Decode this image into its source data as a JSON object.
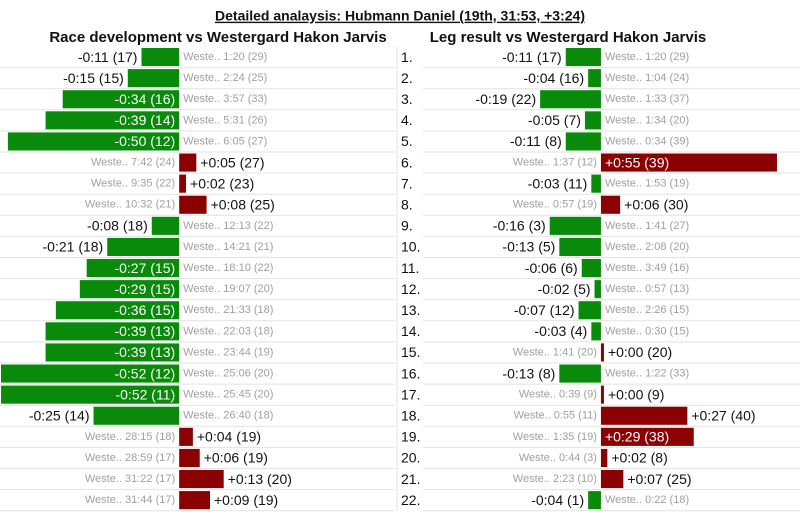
{
  "title": "Detailed analaysis: Hubmann Daniel (19th, 31:53, +3:24)",
  "chart_data": [
    {
      "type": "bar",
      "orientation": "horizontal",
      "title": "Race development vs Westergard Hakon Jarvis",
      "colors": {
        "negative": "#0a8a0a",
        "positive": "#8b0000"
      },
      "xlim": [
        -52.3,
        63
      ],
      "values": [
        -11,
        -15,
        -34,
        -39,
        -50,
        5,
        2,
        8,
        -8,
        -21,
        -27,
        -29,
        -36,
        -39,
        -39,
        -52,
        -52,
        -25,
        4,
        6,
        13,
        9
      ],
      "value_labels": [
        "-0:11 (17)",
        "-0:15 (15)",
        "-0:34 (16)",
        "-0:39 (14)",
        "-0:50 (12)",
        "+0:05 (27)",
        "+0:02 (23)",
        "+0:08 (25)",
        "-0:08 (18)",
        "-0:21 (18)",
        "-0:27 (15)",
        "-0:29 (15)",
        "-0:36 (15)",
        "-0:39 (13)",
        "-0:39 (13)",
        "-0:52 (12)",
        "-0:52 (11)",
        "-0:25 (14)",
        "+0:04 (19)",
        "+0:06 (19)",
        "+0:13 (20)",
        "+0:09 (19)"
      ],
      "reference_labels": [
        "Weste.. 1:20 (29)",
        "Weste.. 2:24 (25)",
        "Weste.. 3:57 (33)",
        "Weste.. 5:31 (26)",
        "Weste.. 6:05 (27)",
        "Weste.. 7:42 (24)",
        "Weste.. 9:35 (22)",
        "Weste.. 10:32 (21)",
        "Weste.. 12:13 (22)",
        "Weste.. 14:21 (21)",
        "Weste.. 18:10 (22)",
        "Weste.. 19:07 (20)",
        "Weste.. 21:33 (18)",
        "Weste.. 22:03 (18)",
        "Weste.. 23:44 (19)",
        "Weste.. 25:06 (20)",
        "Weste.. 25:45 (20)",
        "Weste.. 26:40 (18)",
        "Weste.. 28:15 (18)",
        "Weste.. 28:59 (17)",
        "Weste.. 31:22 (17)",
        "Weste.. 31:44 (17)"
      ]
    },
    {
      "type": "bar",
      "orientation": "horizontal",
      "title": "Leg result vs Westergard Hakon Jarvis",
      "colors": {
        "negative": "#0a8a0a",
        "positive": "#8b0000"
      },
      "xlim": [
        -55.6,
        62.2
      ],
      "categories": [
        "1.",
        "2.",
        "3.",
        "4.",
        "5.",
        "6.",
        "7.",
        "8.",
        "9.",
        "10.",
        "11.",
        "12.",
        "13.",
        "14.",
        "15.",
        "16.",
        "17.",
        "18.",
        "19.",
        "20.",
        "21.",
        "22."
      ],
      "values": [
        -11,
        -4,
        -19,
        -5,
        -11,
        55,
        -3,
        6,
        -16,
        -13,
        -6,
        -2,
        -7,
        -3,
        0,
        -13,
        0,
        27,
        29,
        2,
        7,
        -4
      ],
      "value_labels": [
        "-0:11 (17)",
        "-0:04 (16)",
        "-0:19 (22)",
        "-0:05 (7)",
        "-0:11 (8)",
        "+0:55 (39)",
        "-0:03 (11)",
        "+0:06 (30)",
        "-0:16 (3)",
        "-0:13 (5)",
        "-0:06 (6)",
        "-0:02 (5)",
        "-0:07 (12)",
        "-0:03 (4)",
        "+0:00 (20)",
        "-0:13 (8)",
        "+0:00 (9)",
        "+0:27 (40)",
        "+0:29 (38)",
        "+0:02 (8)",
        "+0:07 (25)",
        "-0:04 (1)"
      ],
      "reference_labels": [
        "Weste.. 1:20 (29)",
        "Weste.. 1:04 (24)",
        "Weste.. 1:33 (37)",
        "Weste.. 1:34 (20)",
        "Weste.. 0:34 (39)",
        "Weste.. 1:37 (12)",
        "Weste.. 1:53 (19)",
        "Weste.. 0:57 (19)",
        "Weste.. 1:41 (27)",
        "Weste.. 2:08 (20)",
        "Weste.. 3:49 (16)",
        "Weste.. 0:57 (13)",
        "Weste.. 2:26 (15)",
        "Weste.. 0:30 (15)",
        "Weste.. 1:41 (20)",
        "Weste.. 1:22 (33)",
        "Weste.. 0:39 (9)",
        "Weste.. 0:55 (11)",
        "Weste.. 1:35 (19)",
        "Weste.. 0:44 (3)",
        "Weste.. 2:23 (10)",
        "Weste.. 0:22 (18)"
      ]
    }
  ]
}
